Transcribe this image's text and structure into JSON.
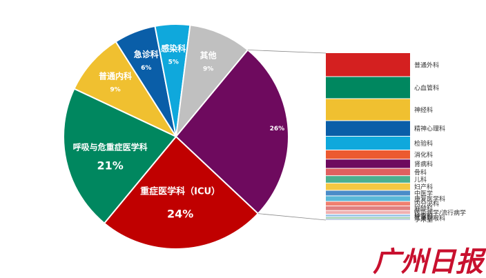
{
  "chart_data": [
    {
      "type": "pie",
      "title": "",
      "slices": [
        {
          "label": "重症医学科（ICU）",
          "value": 24,
          "value_label": "24%",
          "color": "#c00000"
        },
        {
          "label": "呼吸与危重症医学科",
          "value": 21,
          "value_label": "21%",
          "color": "#00875f"
        },
        {
          "label": "普通内科",
          "value": 9,
          "value_label": "9%",
          "color": "#f0c030"
        },
        {
          "label": "急诊科",
          "value": 6,
          "value_label": "6%",
          "color": "#0a5ea8"
        },
        {
          "label": "感染科",
          "value": 5,
          "value_label": "5%",
          "color": "#0fa8dc"
        },
        {
          "label": "其他",
          "value": 9,
          "value_label": "9%",
          "color": "#c0c0c0"
        },
        {
          "label": "",
          "value": 26,
          "value_label": "26%",
          "color": "#6e0a5e"
        }
      ]
    },
    {
      "type": "bar",
      "orientation": "stacked-vertical",
      "title": "",
      "categories": [
        "普通外科",
        "心血管科",
        "神经科",
        "精神心理科",
        "检验科",
        "消化科",
        "肾病科",
        "骨科",
        "儿科",
        "妇产科",
        "中医学",
        "康复医学科",
        "内分泌科",
        "麻醉科",
        "传染病学/流行病学",
        "肿瘤科",
        "耳鼻咽喉科",
        "手术室"
      ],
      "values": [
        26,
        24,
        24,
        17,
        15,
        10,
        10,
        8,
        8,
        8,
        6,
        6,
        5,
        5,
        4,
        3,
        2,
        1
      ],
      "colors": [
        "#d42020",
        "#00875f",
        "#f0c030",
        "#0a5ea8",
        "#0fa8dc",
        "#ec5a30",
        "#6e0a5e",
        "#e06060",
        "#4caf90",
        "#f5c842",
        "#4a8cc8",
        "#5ab8d8",
        "#f08070",
        "#e08080",
        "#f0b0b0",
        "#a0c8e8",
        "#90c8a0",
        "#7090c0"
      ]
    }
  ],
  "watermark": "广州日报"
}
